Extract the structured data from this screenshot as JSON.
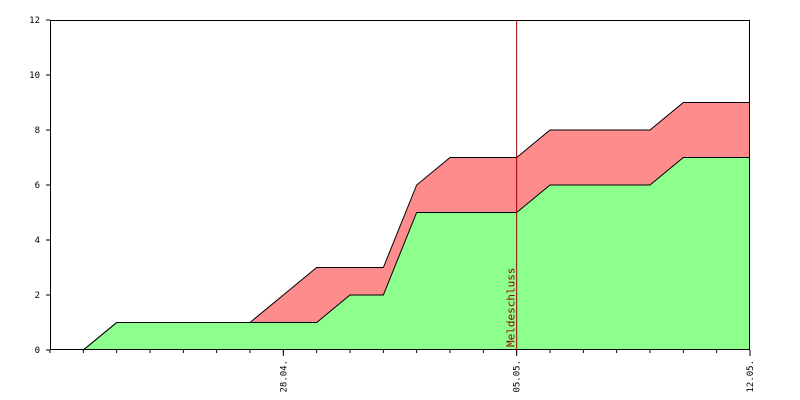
{
  "chart_data": {
    "type": "area",
    "stacked": true,
    "title": "",
    "xlabel": "",
    "ylabel": "",
    "x_range": [
      "2024-04-21",
      "2024-05-12"
    ],
    "ylim": [
      0,
      12
    ],
    "yticks": [
      "0",
      "2",
      "4",
      "6",
      "8",
      "10",
      "12"
    ],
    "xticks": [
      {
        "date": "2024-04-28",
        "label": "28.04."
      },
      {
        "date": "2024-05-05",
        "label": "05.05."
      },
      {
        "date": "2024-05-12",
        "label": "12.05."
      }
    ],
    "minor_ticks_daily": true,
    "x": [
      "2024-04-22",
      "2024-04-23",
      "2024-04-24",
      "2024-04-25",
      "2024-04-26",
      "2024-04-27",
      "2024-04-28",
      "2024-04-29",
      "2024-04-30",
      "2024-05-01",
      "2024-05-02",
      "2024-05-03",
      "2024-05-04",
      "2024-05-05",
      "2024-05-06",
      "2024-05-07",
      "2024-05-08",
      "2024-05-09",
      "2024-05-10",
      "2024-05-11",
      "2024-05-12"
    ],
    "series": [
      {
        "color": "#8cff8c",
        "values": [
          0,
          1,
          1,
          1,
          1,
          1,
          1,
          1,
          2,
          2,
          5,
          5,
          5,
          5,
          6,
          6,
          6,
          6,
          7,
          7,
          7
        ]
      },
      {
        "color": "#ff8c8c",
        "values": [
          0,
          0,
          0,
          0,
          0,
          0,
          1,
          2,
          1,
          1,
          1,
          2,
          2,
          2,
          2,
          2,
          2,
          2,
          2,
          2,
          2
        ]
      }
    ],
    "grid": false,
    "legend": "none",
    "annotation": {
      "type": "vline",
      "date": "2024-05-05",
      "label": "Meldeschluss",
      "color": "#990000"
    }
  }
}
